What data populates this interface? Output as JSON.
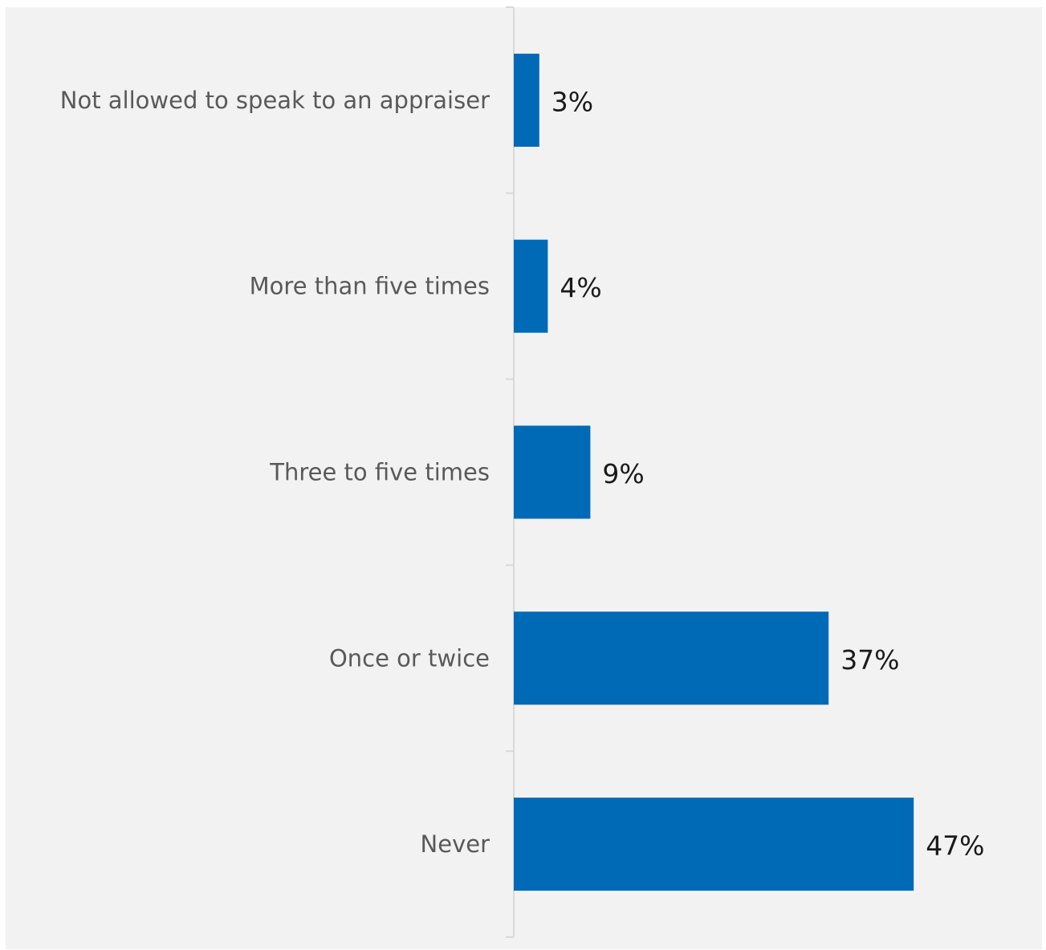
{
  "chart_data": {
    "type": "bar",
    "orientation": "horizontal",
    "categories": [
      "Not allowed to speak to an appraiser",
      "More than five times",
      "Three to five times",
      "Once or twice",
      "Never"
    ],
    "values": [
      3,
      4,
      9,
      37,
      47
    ],
    "value_labels": [
      "3%",
      "4%",
      "9%",
      "37%",
      "47%"
    ],
    "unit": "%",
    "xlim": [
      0,
      55
    ],
    "grid": false,
    "legend": "none",
    "colors": {
      "bar": "#006ab7",
      "axis": "#d9d9d9",
      "background": "#f2f2f2",
      "category_text": "#595959",
      "value_text": "#1a1a1a"
    }
  }
}
